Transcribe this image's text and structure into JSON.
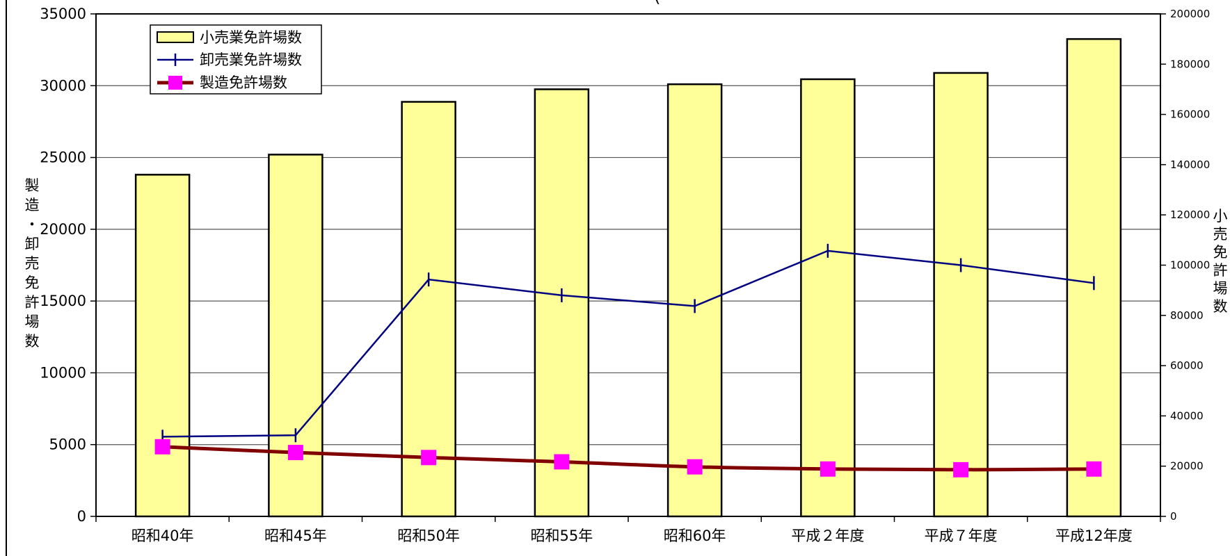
{
  "chart_data": {
    "type": "bar",
    "title": "(",
    "categories": [
      "昭和40年",
      "昭和45年",
      "昭和50年",
      "昭和55年",
      "昭和60年",
      "平成２年度",
      "平成７年度",
      "平成12年度"
    ],
    "series": [
      {
        "name": "小売業免許場数",
        "type": "bar",
        "axis": "right",
        "color": "#FFFF99",
        "values": [
          136000,
          144000,
          165000,
          170000,
          172000,
          174000,
          176500,
          190000
        ]
      },
      {
        "name": "卸売業免許場数",
        "type": "line",
        "axis": "left",
        "color": "#000080",
        "marker": "tick",
        "values": [
          5550,
          5650,
          16500,
          15400,
          14650,
          18500,
          17500,
          16250
        ]
      },
      {
        "name": "製造免許場数",
        "type": "line",
        "axis": "left",
        "color": "#800000",
        "marker": "square",
        "marker_color": "#FF00FF",
        "values": [
          4850,
          4450,
          4100,
          3800,
          3450,
          3300,
          3250,
          3300
        ]
      }
    ],
    "yaxis_left": {
      "label": "製造・卸売免許場数",
      "ylim": [
        0,
        35000
      ],
      "ticks": [
        "0",
        "5000",
        "10000",
        "15000",
        "20000",
        "25000",
        "30000",
        "35000"
      ]
    },
    "yaxis_right": {
      "label": "小売免許場数",
      "ylim": [
        0,
        200000
      ],
      "ticks": [
        "0",
        "20000",
        "40000",
        "60000",
        "80000",
        "100000",
        "120000",
        "140000",
        "160000",
        "180000",
        "200000"
      ]
    },
    "grid": true,
    "legend": "top-left"
  }
}
